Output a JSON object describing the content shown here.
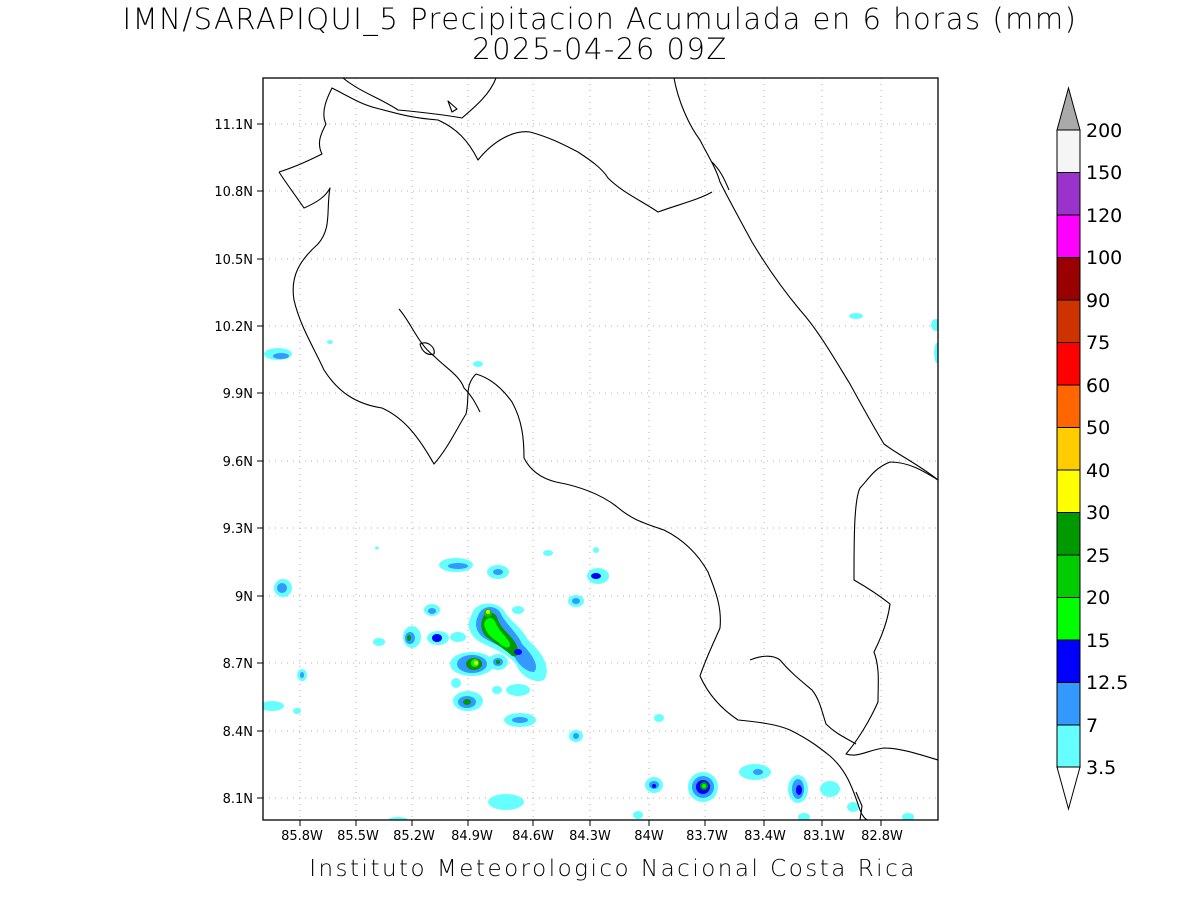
{
  "title": {
    "line1": "IMN/SARAPIQUI_5 Precipitacion Acumulada en 6 horas (mm)",
    "line2": "2025-04-26 09Z"
  },
  "footer": "Instituto Meteorologico Nacional Costa Rica",
  "map": {
    "lat_labels": [
      "11.1N",
      "10.8N",
      "10.5N",
      "10.2N",
      "9.9N",
      "9.6N",
      "9.3N",
      "9N",
      "8.7N",
      "8.4N",
      "8.1N"
    ],
    "lon_labels": [
      "85.8W",
      "85.5W",
      "85.2W",
      "84.9W",
      "84.6W",
      "84.3W",
      "84W",
      "83.7W",
      "83.4W",
      "83.1W",
      "82.8W"
    ]
  },
  "colorbar": {
    "levels": [
      "3.5",
      "7",
      "12.5",
      "15",
      "20",
      "25",
      "30",
      "40",
      "50",
      "60",
      "75",
      "90",
      "100",
      "120",
      "150",
      "200"
    ],
    "colors": [
      "#66ffff",
      "#3399ff",
      "#0000ff",
      "#00ff00",
      "#00cc00",
      "#009900",
      "#ffff00",
      "#ffcc00",
      "#ff6600",
      "#ff0000",
      "#cc3300",
      "#990000",
      "#ff00ff",
      "#9933cc",
      "#f5f5f5",
      "#aaaaaa"
    ]
  }
}
